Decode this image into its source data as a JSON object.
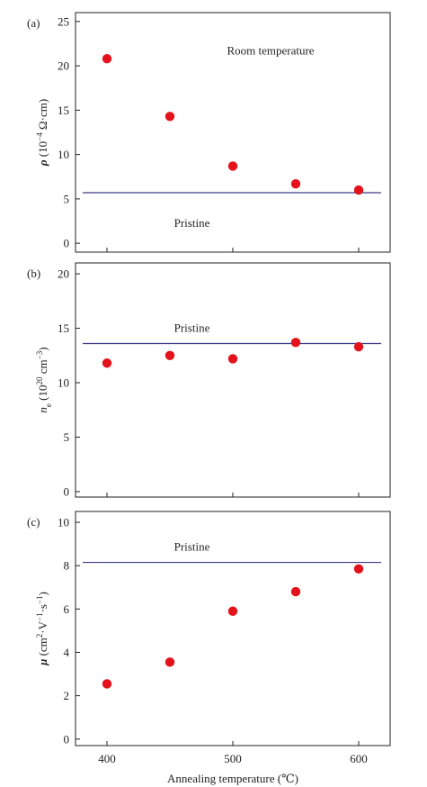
{
  "chart_data": [
    {
      "type": "scatter",
      "panel_label": "(a)",
      "ylabel_html": "<tspan font-weight='bold' font-style='italic'>ρ</tspan><tspan> (10</tspan><tspan baseline-shift='super' font-size='9'>−4</tspan><tspan> Ω·cm)</tspan>",
      "x": [
        400,
        450,
        500,
        550,
        600
      ],
      "values": [
        20.8,
        14.3,
        8.7,
        6.7,
        6.0
      ],
      "reference": {
        "label": "Pristine",
        "value": 5.7
      },
      "annotations": [
        {
          "text": "Room temperature"
        }
      ],
      "xlim": [
        375,
        625
      ],
      "ylim": [
        -1,
        26
      ],
      "yticks": [
        0,
        5,
        10,
        15,
        20,
        25
      ],
      "xticks": [
        400,
        500,
        600
      ],
      "show_xtick_labels": false,
      "grid": false,
      "marker_color": "#e3121b",
      "line_color": "#3b3a8c"
    },
    {
      "type": "scatter",
      "panel_label": "(b)",
      "ylabel_html": "<tspan font-style='italic'>n</tspan><tspan baseline-shift='sub' font-size='9'>e</tspan><tspan> (10</tspan><tspan baseline-shift='super' font-size='9'>20</tspan><tspan> cm</tspan><tspan baseline-shift='super' font-size='9'>−3</tspan><tspan>)</tspan>",
      "x": [
        400,
        450,
        500,
        550,
        600
      ],
      "values": [
        11.8,
        12.5,
        12.2,
        13.7,
        13.3
      ],
      "reference": {
        "label": "Pristine",
        "value": 13.6
      },
      "annotations": [],
      "xlim": [
        375,
        625
      ],
      "ylim": [
        -0.5,
        21
      ],
      "yticks": [
        0,
        5,
        10,
        15,
        20
      ],
      "xticks": [
        400,
        500,
        600
      ],
      "show_xtick_labels": false,
      "grid": false,
      "marker_color": "#e3121b",
      "line_color": "#3b3a8c"
    },
    {
      "type": "scatter",
      "panel_label": "(c)",
      "ylabel_html": "<tspan font-weight='bold' font-style='italic'>μ</tspan><tspan> (cm</tspan><tspan baseline-shift='super' font-size='9'>2</tspan><tspan>·V</tspan><tspan baseline-shift='super' font-size='9'>−1</tspan><tspan>·s</tspan><tspan baseline-shift='super' font-size='9'>−1</tspan><tspan>)</tspan>",
      "x": [
        400,
        450,
        500,
        550,
        600
      ],
      "values": [
        2.55,
        3.55,
        5.9,
        6.8,
        7.85
      ],
      "reference": {
        "label": "Pristine",
        "value": 8.15
      },
      "annotations": [],
      "xlim": [
        375,
        625
      ],
      "ylim": [
        -0.3,
        10.5
      ],
      "yticks": [
        0,
        2,
        4,
        6,
        8,
        10
      ],
      "xticks": [
        400,
        500,
        600
      ],
      "show_xtick_labels": true,
      "xlabel": "Annealing temperature (℃)",
      "grid": false,
      "marker_color": "#e3121b",
      "line_color": "#3b3a8c"
    }
  ]
}
